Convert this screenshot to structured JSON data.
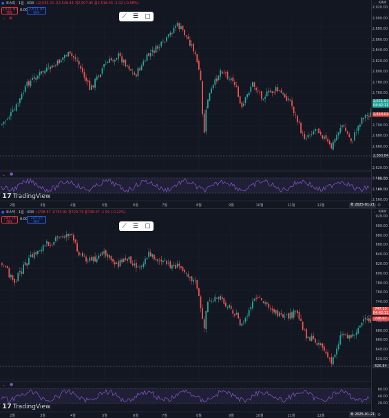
{
  "panes": [
    {
      "symbol": "코스피 · 1일 · KRX",
      "ohlc": "시2,533.21 고2,548.44 저2,507.95 종2,518.03 -2.02 (-0.08%)",
      "sell_price": "2,571.97",
      "sell_label": "매도",
      "spread": "0.00",
      "buy_price": "2,571.97",
      "buy_label": "매수",
      "currency": "KRW",
      "y_ticks": [
        "2,920.00",
        "2,900.00",
        "2,880.00",
        "2,860.00",
        "2,840.00",
        "2,820.00",
        "2,800.00",
        "2,780.00",
        "2,760.00",
        "2,740.00",
        "2,720.00",
        "2,700.00",
        "2,680.00",
        "2,660.00",
        "2,640.00",
        "2,620.00",
        "2,600.00",
        "2,580.00",
        "2,560.00",
        "2,540.00",
        "2,520.00",
        "2,500.00",
        "2,480.00",
        "2,460.00",
        "2,440.00",
        "2,420.00",
        "2,400.00",
        "2,380.00"
      ],
      "last_tag": "2,571.97",
      "last_tag_sub": "04:42:11",
      "close_tag": "2,518.03",
      "low_tag": "2,360.84",
      "rsi_ticks": [
        "60.00",
        "40.00"
      ],
      "x_labels": [
        "2월",
        "3월",
        "4월",
        "5월",
        "6월",
        "7월",
        "8월",
        "9월",
        "10월",
        "11월",
        "12월"
      ],
      "date_tag": "화 2025-01-21"
    },
    {
      "symbol": "코스닥 · 1일 · KRX",
      "ohlc": "시728.57 고733.91 저720.73 종726.07 -1.59 (-0.22%)",
      "sell_price": "747.15",
      "sell_label": "매도",
      "spread": "0.00",
      "buy_price": "747.15",
      "buy_label": "매수",
      "currency": "KRW",
      "y_ticks": [
        "920.00",
        "900.00",
        "880.00",
        "860.00",
        "840.00",
        "820.00",
        "800.00",
        "780.00",
        "760.00",
        "740.00",
        "720.00",
        "700.00",
        "680.00",
        "660.00",
        "640.00",
        "620.00"
      ],
      "last_tag": "747.15",
      "last_tag_sub": "04:42:11",
      "close_tag": "726.07",
      "low_tag": "626.84",
      "rsi_ticks": [
        "60.00",
        "40.00",
        "20.00"
      ],
      "x_labels": [
        "2월",
        "3월",
        "4월",
        "5월",
        "6월",
        "7월",
        "8월",
        "9월",
        "10월",
        "11월",
        "12월"
      ],
      "date_tag": "화 2025-01-21"
    }
  ],
  "logo_text": "TradingView",
  "colors": {
    "up": "#26a69a",
    "down": "#ef5350",
    "rsi": "#7e57c2",
    "bg": "#131722"
  },
  "icons": [
    "trend-line-icon",
    "fib-icon",
    "rectangle-icon",
    "gear-icon",
    "chevron-down-icon"
  ]
}
